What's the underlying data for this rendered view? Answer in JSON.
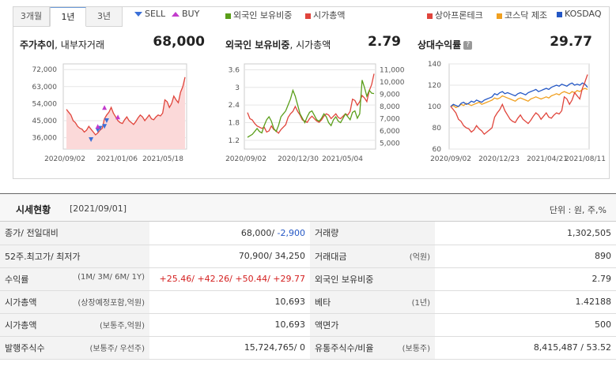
{
  "tabs": {
    "t3m": "3개월",
    "t1y": "1년",
    "t3y": "3년",
    "active": "1년"
  },
  "legends": {
    "sell": "SELL",
    "buy": "BUY",
    "foreign": "외국인 보유비중",
    "mcap": "시가총액",
    "company": "상아프론테크",
    "kosdaq_mfg": "코스닥 제조",
    "kosdaq": "KOSDAQ"
  },
  "charts": {
    "price": {
      "title_bold": "주가추이",
      "title_rest": ", 내부자거래",
      "value": "68,000"
    },
    "foreign": {
      "title_bold": "외국인 보유비중",
      "title_rest": ", 시가총액",
      "value": "2.79"
    },
    "relative": {
      "title_bold": "상대수익률",
      "value": "29.77"
    }
  },
  "chart_data": [
    {
      "type": "area",
      "title": "주가추이, 내부자거래",
      "x_ticks": [
        "2020/09/02",
        "2021/01/06",
        "2021/05/18"
      ],
      "y_ticks": [
        "72,000",
        "63,000",
        "54,000",
        "45,000",
        "36,000"
      ],
      "ylim": [
        30000,
        75000
      ],
      "series": [
        {
          "values": [
            51000,
            49500,
            48000,
            45000,
            44000,
            42000,
            41000,
            40500,
            39000,
            40000,
            42000,
            40500,
            39000,
            37500,
            38500,
            40000,
            41000,
            46000,
            48000,
            49500,
            52000,
            49000,
            47000,
            45000,
            44000,
            43500,
            45500,
            47000,
            45000,
            44000,
            43000,
            44500,
            46500,
            48000,
            47000,
            45000,
            46500,
            48000,
            46000,
            45500,
            47000,
            48000,
            47500,
            49000,
            56000,
            55000,
            52000,
            54000,
            58000,
            56000,
            54500,
            60000,
            63000,
            68000
          ]
        }
      ],
      "markers": {
        "sell": [
          [
            11,
            35000
          ],
          [
            14,
            40000
          ],
          [
            15,
            41000
          ],
          [
            17,
            42000
          ],
          [
            18,
            45000
          ]
        ],
        "buy": [
          [
            14,
            42000
          ],
          [
            17,
            52000
          ],
          [
            23,
            47000
          ]
        ]
      }
    },
    {
      "type": "line",
      "title": "외국인 보유비중, 시가총액",
      "x_ticks": [
        "2020/09/02",
        "2020/12/30",
        "2021/05/04"
      ],
      "y_ticks_left": [
        "3.6",
        "3",
        "2.4",
        "1.8",
        "1.2"
      ],
      "y_ticks_right": [
        "11,000",
        "10,000",
        "9,000",
        "8,000",
        "7,000",
        "6,000",
        "5,000"
      ],
      "series": [
        {
          "name": "외국인 보유비중",
          "values": [
            1.3,
            1.35,
            1.4,
            1.5,
            1.6,
            1.5,
            1.45,
            1.7,
            1.9,
            2.0,
            1.85,
            1.6,
            1.5,
            1.7,
            2.0,
            2.1,
            2.2,
            2.4,
            2.6,
            2.9,
            2.7,
            2.4,
            2.1,
            1.95,
            1.8,
            2.0,
            2.15,
            2.2,
            2.05,
            1.9,
            1.85,
            1.95,
            2.1,
            2.0,
            1.8,
            1.7,
            1.9,
            2.0,
            1.85,
            1.8,
            1.95,
            2.1,
            2.0,
            1.9,
            2.15,
            2.2,
            1.95,
            2.1,
            3.25,
            3.0,
            2.7,
            2.9,
            2.8,
            2.79
          ]
        },
        {
          "name": "시가총액",
          "values": [
            7500,
            7000,
            6900,
            6600,
            6400,
            6300,
            6200,
            6300,
            5900,
            6000,
            6400,
            6100,
            6000,
            5800,
            6100,
            6300,
            6500,
            7100,
            7400,
            7600,
            8000,
            7600,
            7300,
            6900,
            6800,
            6700,
            7000,
            7200,
            7000,
            6800,
            6700,
            6900,
            7200,
            7400,
            7300,
            7000,
            7200,
            7400,
            7100,
            7000,
            7200,
            7400,
            7300,
            7600,
            8600,
            8500,
            8100,
            8400,
            8900,
            8700,
            8400,
            9300,
            9800,
            10693
          ]
        }
      ]
    },
    {
      "type": "line",
      "title": "상대수익률",
      "x_ticks": [
        "2020/09/02",
        "2020/12/23",
        "2021/04/21",
        "2021/08/11"
      ],
      "y_ticks": [
        "140",
        "120",
        "100",
        "80",
        "60"
      ],
      "ylim": [
        60,
        140
      ],
      "series": [
        {
          "name": "상아프론테크",
          "values": [
            100,
            97,
            94,
            88,
            86,
            82,
            80,
            79,
            76,
            78,
            82,
            79,
            77,
            74,
            76,
            78,
            80,
            90,
            94,
            97,
            102,
            96,
            92,
            88,
            86,
            85,
            89,
            92,
            88,
            86,
            84,
            87,
            91,
            94,
            92,
            88,
            91,
            94,
            90,
            89,
            92,
            94,
            93,
            96,
            109,
            107,
            102,
            106,
            113,
            110,
            107,
            117,
            123,
            130
          ]
        },
        {
          "name": "코스닥 제조",
          "values": [
            100,
            101,
            99,
            100,
            102,
            101,
            103,
            102,
            101,
            102,
            103,
            104,
            102,
            103,
            104,
            105,
            106,
            108,
            107,
            108,
            110,
            109,
            108,
            107,
            106,
            105,
            107,
            108,
            107,
            106,
            105,
            107,
            108,
            109,
            108,
            107,
            108,
            109,
            108,
            110,
            111,
            112,
            111,
            113,
            114,
            113,
            112,
            114,
            113,
            115,
            114,
            116,
            117,
            116
          ]
        },
        {
          "name": "KOSDAQ",
          "values": [
            100,
            102,
            101,
            100,
            103,
            104,
            102,
            103,
            105,
            104,
            106,
            105,
            104,
            106,
            107,
            108,
            109,
            112,
            111,
            113,
            114,
            112,
            113,
            112,
            111,
            110,
            112,
            113,
            112,
            111,
            113,
            114,
            115,
            116,
            114,
            115,
            116,
            117,
            116,
            118,
            119,
            120,
            119,
            121,
            120,
            119,
            121,
            122,
            120,
            121,
            120,
            122,
            121,
            118
          ]
        }
      ]
    }
  ],
  "status": {
    "title": "시세현황",
    "date": "[2021/09/01]",
    "unit": "단위 : 원, 주,%",
    "rows": [
      {
        "l_label": "종가/ 전일대비",
        "l_sub": "",
        "l_val1": "68,000/",
        "l_val2": " -2,900",
        "r_label": "거래량",
        "r_sub": "",
        "r_val": "1,302,505"
      },
      {
        "l_label": "52주.최고가/ 최저가",
        "l_sub": "",
        "l_val1": "70,900/ 34,250",
        "l_val2": "",
        "r_label": "거래대금",
        "r_sub": "(억원)",
        "r_val": "890"
      },
      {
        "l_label": "수익률",
        "l_sub": "(1M/ 3M/ 6M/ 1Y)",
        "l_val1": "+25.46/ +42.26/ +50.44/ +29.77",
        "l_val2": "",
        "r_label": "외국인 보유비중",
        "r_sub": "",
        "r_val": "2.79"
      },
      {
        "l_label": "시가총액",
        "l_sub": "(상장예정포함,억원)",
        "l_val1": "10,693",
        "l_val2": "",
        "r_label": "베타",
        "r_sub": "(1년)",
        "r_val": "1.42188"
      },
      {
        "l_label": "시가총액",
        "l_sub": "(보통주,억원)",
        "l_val1": "10,693",
        "l_val2": "",
        "r_label": "액면가",
        "r_sub": "",
        "r_val": "500"
      },
      {
        "l_label": "발행주식수",
        "l_sub": "(보통주/ 우선주)",
        "l_val1": "15,724,765/ 0",
        "l_val2": "",
        "r_label": "유통주식수/비율",
        "r_sub": "(보통주)",
        "r_val": "8,415,487 / 53.52"
      }
    ]
  },
  "colors": {
    "red": "#e0453c",
    "green": "#5a9e1a",
    "orange": "#f0a020",
    "blue": "#2457c5",
    "pink_fill": "#fbd9d9"
  }
}
